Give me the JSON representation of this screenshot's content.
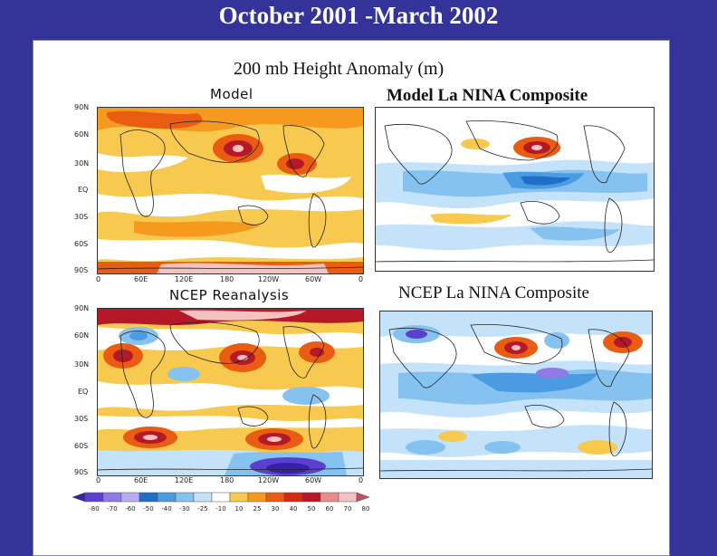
{
  "slide": {
    "title": "October 2001 -March 2002"
  },
  "main_title": "200 mb Height Anomaly (m)",
  "panels": {
    "model_label": "Model",
    "ncep_label": "NCEP Reanalysis",
    "model_composite_title": "Model La NINA Composite",
    "ncep_composite_title": "NCEP La NINA Composite"
  },
  "axes": {
    "lat_labels": [
      "90N",
      "60N",
      "30N",
      "EQ",
      "30S",
      "60S",
      "90S"
    ],
    "model_lon_labels": [
      "0",
      "60E",
      "120E",
      "180",
      "120W",
      "60W",
      "0"
    ],
    "ncep_lon_labels": [
      "0",
      "60E",
      "120E",
      "180",
      "120W",
      "60W",
      "0"
    ]
  },
  "colorbar": {
    "labels": [
      "-80",
      "-70",
      "-60",
      "-50",
      "-40",
      "-30",
      "-25",
      "-10",
      "10",
      "25",
      "30",
      "40",
      "50",
      "60",
      "70",
      "80"
    ],
    "colors": [
      "#3a1fa8",
      "#5a3fd0",
      "#8f7ae8",
      "#b9acf2",
      "#1f6fc9",
      "#4b9be0",
      "#86c2f0",
      "#c4e2fa",
      "#ffffff",
      "#f7c94f",
      "#f59a1f",
      "#ea5c12",
      "#d42a12",
      "#b51826",
      "#e88c8c",
      "#f5c1c1",
      "#c0505a"
    ]
  }
}
